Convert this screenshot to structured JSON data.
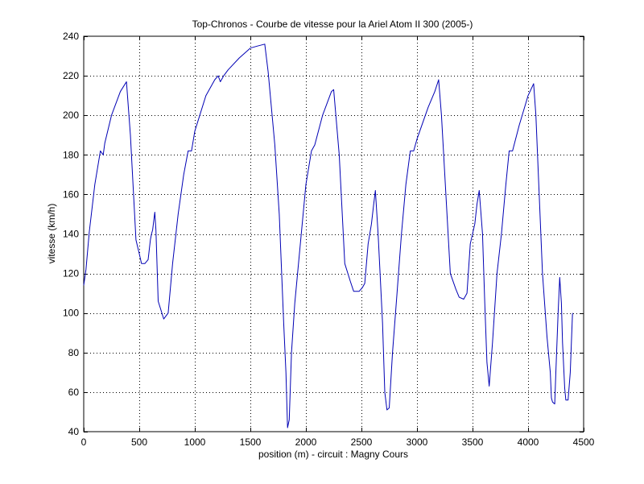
{
  "chart_data": {
    "type": "line",
    "title": "Top-Chronos - Courbe de vitesse pour la Ariel Atom II 300 (2005-)",
    "xlabel": "position (m) - circuit : Magny Cours",
    "ylabel": "vitesse (km/h)",
    "xlim": [
      0,
      4500
    ],
    "ylim": [
      40,
      240
    ],
    "xticks": [
      0,
      500,
      1000,
      1500,
      2000,
      2500,
      3000,
      3500,
      4000,
      4500
    ],
    "yticks": [
      40,
      60,
      80,
      100,
      120,
      140,
      160,
      180,
      200,
      220,
      240
    ],
    "xtick_labels": [
      "0",
      "500",
      "1000",
      "1500",
      "2000",
      "2500",
      "3000",
      "3500",
      "4000",
      "4500"
    ],
    "ytick_labels": [
      "40",
      "60",
      "80",
      "100",
      "120",
      "140",
      "160",
      "180",
      "200",
      "220",
      "240"
    ],
    "grid": true,
    "legend": false,
    "line_color": "#0000b4",
    "series": [
      {
        "x": [
          0,
          20,
          50,
          100,
          150,
          175,
          190,
          250,
          330,
          385,
          420,
          470,
          500,
          520,
          550,
          580,
          600,
          610,
          620,
          640,
          650,
          670,
          720,
          760,
          800,
          850,
          900,
          940,
          970,
          1000,
          1100,
          1180,
          1210,
          1230,
          1260,
          1300,
          1400,
          1500,
          1560,
          1630,
          1660,
          1720,
          1760,
          1800,
          1820,
          1835,
          1850,
          1870,
          1900,
          1950,
          2000,
          2050,
          2080,
          2150,
          2230,
          2250,
          2300,
          2350,
          2400,
          2430,
          2480,
          2510,
          2530,
          2560,
          2590,
          2610,
          2625,
          2650,
          2690,
          2710,
          2730,
          2750,
          2780,
          2820,
          2860,
          2900,
          2940,
          2970,
          3000,
          3100,
          3160,
          3195,
          3220,
          3260,
          3300,
          3350,
          3380,
          3420,
          3450,
          3480,
          3520,
          3540,
          3560,
          3590,
          3610,
          3630,
          3650,
          3680,
          3720,
          3760,
          3800,
          3830,
          3860,
          3920,
          4000,
          4050,
          4070,
          4100,
          4130,
          4170,
          4200,
          4210,
          4220,
          4240,
          4250,
          4270,
          4285,
          4300,
          4310,
          4330,
          4340,
          4360,
          4380,
          4400
        ],
        "y": [
          114,
          122,
          141,
          165,
          182,
          180,
          186,
          200,
          212,
          217,
          190,
          137,
          130,
          125,
          125,
          127,
          137,
          140,
          142,
          151,
          142,
          106,
          97,
          100,
          125,
          150,
          170,
          182,
          182,
          192,
          210,
          218,
          220,
          217,
          220,
          223,
          229,
          234,
          235,
          236,
          222,
          185,
          150,
          95,
          70,
          42,
          46,
          80,
          105,
          135,
          165,
          182,
          185,
          200,
          212,
          213,
          180,
          125,
          116,
          111,
          111,
          113,
          115,
          135,
          145,
          155,
          162,
          140,
          95,
          60,
          51,
          52,
          80,
          110,
          140,
          165,
          182,
          182,
          188,
          204,
          212,
          218,
          200,
          160,
          120,
          112,
          108,
          107,
          110,
          135,
          145,
          155,
          162,
          140,
          105,
          75,
          63,
          85,
          120,
          140,
          165,
          182,
          182,
          195,
          210,
          216,
          200,
          160,
          120,
          88,
          70,
          57,
          55,
          54,
          70,
          100,
          118,
          105,
          85,
          62,
          56,
          56,
          70,
          100
        ]
      }
    ]
  }
}
